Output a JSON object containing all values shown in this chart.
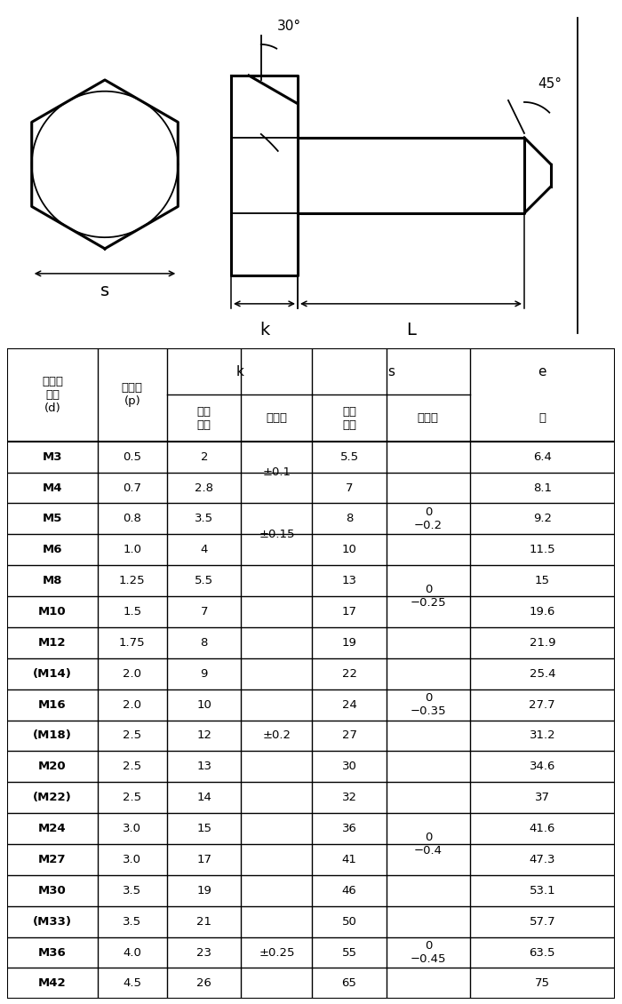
{
  "bg_color": "#ffffff",
  "table_rows": [
    [
      "M3",
      "0.5",
      "2",
      "5.5",
      "6.4"
    ],
    [
      "M4",
      "0.7",
      "2.8",
      "7",
      "8.1"
    ],
    [
      "M5",
      "0.8",
      "3.5",
      "8",
      "9.2"
    ],
    [
      "M6",
      "1.0",
      "4",
      "10",
      "11.5"
    ],
    [
      "M8",
      "1.25",
      "5.5",
      "13",
      "15"
    ],
    [
      "M10",
      "1.5",
      "7",
      "17",
      "19.6"
    ],
    [
      "M12",
      "1.75",
      "8",
      "19",
      "21.9"
    ],
    [
      "(M14)",
      "2.0",
      "9",
      "22",
      "25.4"
    ],
    [
      "M16",
      "2.0",
      "10",
      "24",
      "27.7"
    ],
    [
      "(M18)",
      "2.5",
      "12",
      "27",
      "31.2"
    ],
    [
      "M20",
      "2.5",
      "13",
      "30",
      "34.6"
    ],
    [
      "(M22)",
      "2.5",
      "14",
      "32",
      "37"
    ],
    [
      "M24",
      "3.0",
      "15",
      "36",
      "41.6"
    ],
    [
      "M27",
      "3.0",
      "17",
      "41",
      "47.3"
    ],
    [
      "M30",
      "3.5",
      "19",
      "46",
      "53.1"
    ],
    [
      "(M33)",
      "3.5",
      "21",
      "50",
      "57.7"
    ],
    [
      "M36",
      "4.0",
      "23",
      "55",
      "63.5"
    ],
    [
      "M42",
      "4.5",
      "26",
      "65",
      "75"
    ]
  ],
  "k_tol_spans": [
    [
      0,
      2,
      "±0.1"
    ],
    [
      2,
      4,
      "±0.15"
    ],
    [
      4,
      15,
      "±0.2"
    ],
    [
      15,
      18,
      "±0.25"
    ]
  ],
  "s_tol_spans": [
    [
      1,
      4,
      "0\n−0.2"
    ],
    [
      4,
      6,
      "0\n−0.25"
    ],
    [
      6,
      11,
      "0\n−0.35"
    ],
    [
      11,
      15,
      "0\n−0.4"
    ],
    [
      15,
      18,
      "0\n−0.45"
    ]
  ]
}
